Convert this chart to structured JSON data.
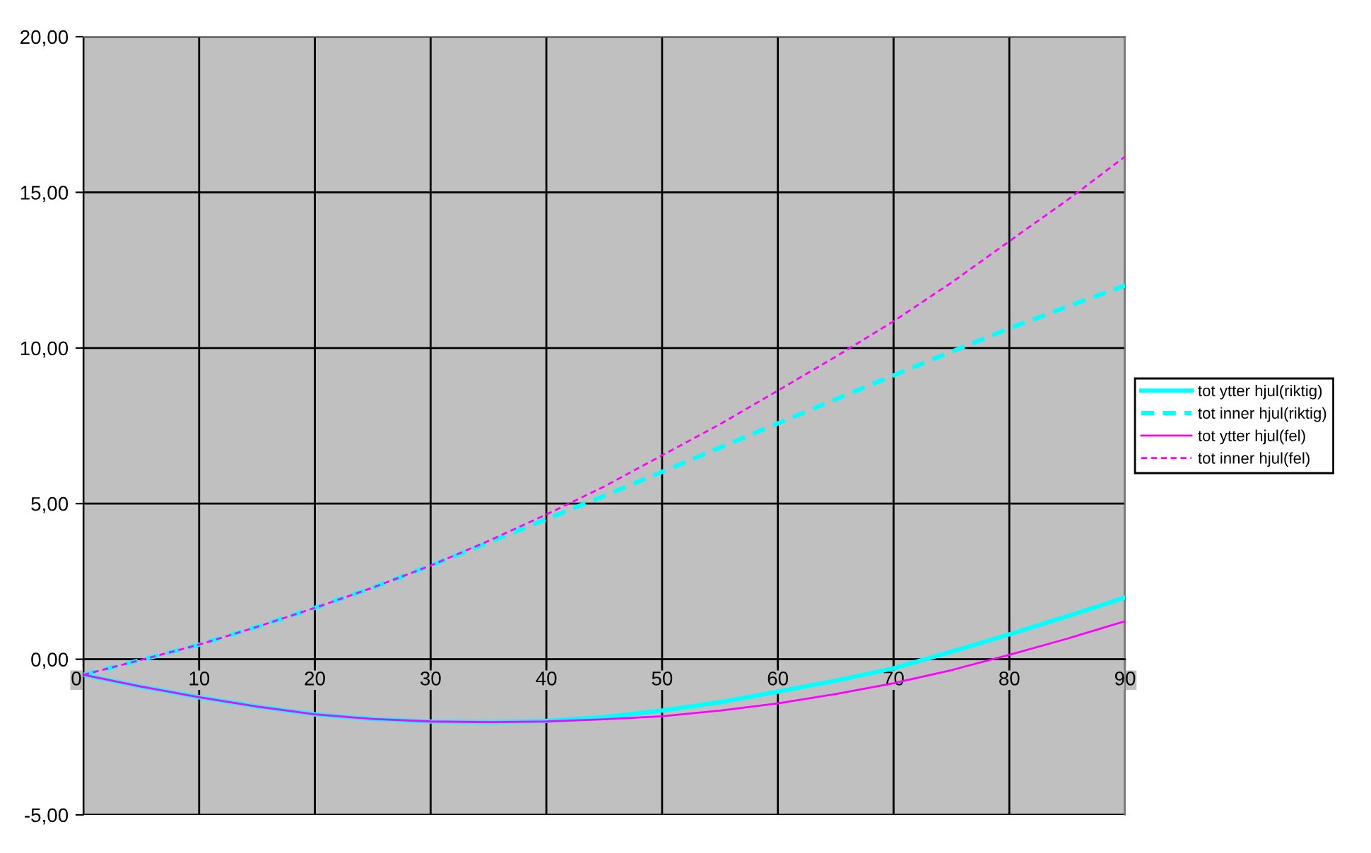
{
  "chart_data": {
    "type": "line",
    "x": [
      0,
      5,
      10,
      15,
      20,
      25,
      30,
      35,
      40,
      45,
      50,
      55,
      60,
      65,
      70,
      75,
      80,
      85,
      90
    ],
    "series": [
      {
        "name": "tot ytter hjul(riktig)",
        "color": "#00ffff",
        "line_style": "solid",
        "values": [
          -0.5,
          -0.88,
          -1.22,
          -1.52,
          -1.77,
          -1.92,
          -2.0,
          -2.02,
          -1.98,
          -1.86,
          -1.65,
          -1.38,
          -1.04,
          -0.69,
          -0.29,
          0.24,
          0.8,
          1.38,
          1.98
        ]
      },
      {
        "name": "tot inner hjul(riktig)",
        "color": "#00ffff",
        "line_style": "dashed",
        "values": [
          -0.5,
          -0.02,
          0.47,
          1.04,
          1.65,
          2.3,
          3.01,
          3.75,
          4.5,
          5.25,
          6.02,
          6.8,
          7.58,
          8.35,
          9.12,
          9.88,
          10.63,
          11.33,
          12.01
        ]
      },
      {
        "name": "tot ytter hjul(fel)",
        "color": "#ff00ff",
        "line_style": "solid",
        "values": [
          -0.5,
          -0.88,
          -1.22,
          -1.52,
          -1.77,
          -1.92,
          -2.0,
          -2.02,
          -2.0,
          -1.93,
          -1.83,
          -1.65,
          -1.42,
          -1.12,
          -0.77,
          -0.35,
          0.14,
          0.66,
          1.22
        ]
      },
      {
        "name": "tot inner hjul(fel)",
        "color": "#ff00ff",
        "line_style": "dashed",
        "values": [
          -0.5,
          -0.02,
          0.47,
          1.04,
          1.65,
          2.3,
          3.01,
          3.8,
          4.65,
          5.55,
          6.55,
          7.55,
          8.63,
          9.72,
          10.86,
          12.1,
          13.43,
          14.75,
          16.15
        ]
      }
    ],
    "xlim": [
      0,
      90
    ],
    "xticks": [
      0,
      10,
      20,
      30,
      40,
      50,
      60,
      70,
      80,
      90
    ],
    "ylim": [
      -5,
      20
    ],
    "yticks": [
      {
        "value": -5,
        "label": "-5,00"
      },
      {
        "value": 0,
        "label": "0,00"
      },
      {
        "value": 5,
        "label": "5,00"
      },
      {
        "value": 10,
        "label": "10,00"
      },
      {
        "value": 15,
        "label": "15,00"
      },
      {
        "value": 20,
        "label": "20,00"
      }
    ],
    "grid": true,
    "legend": "right"
  }
}
